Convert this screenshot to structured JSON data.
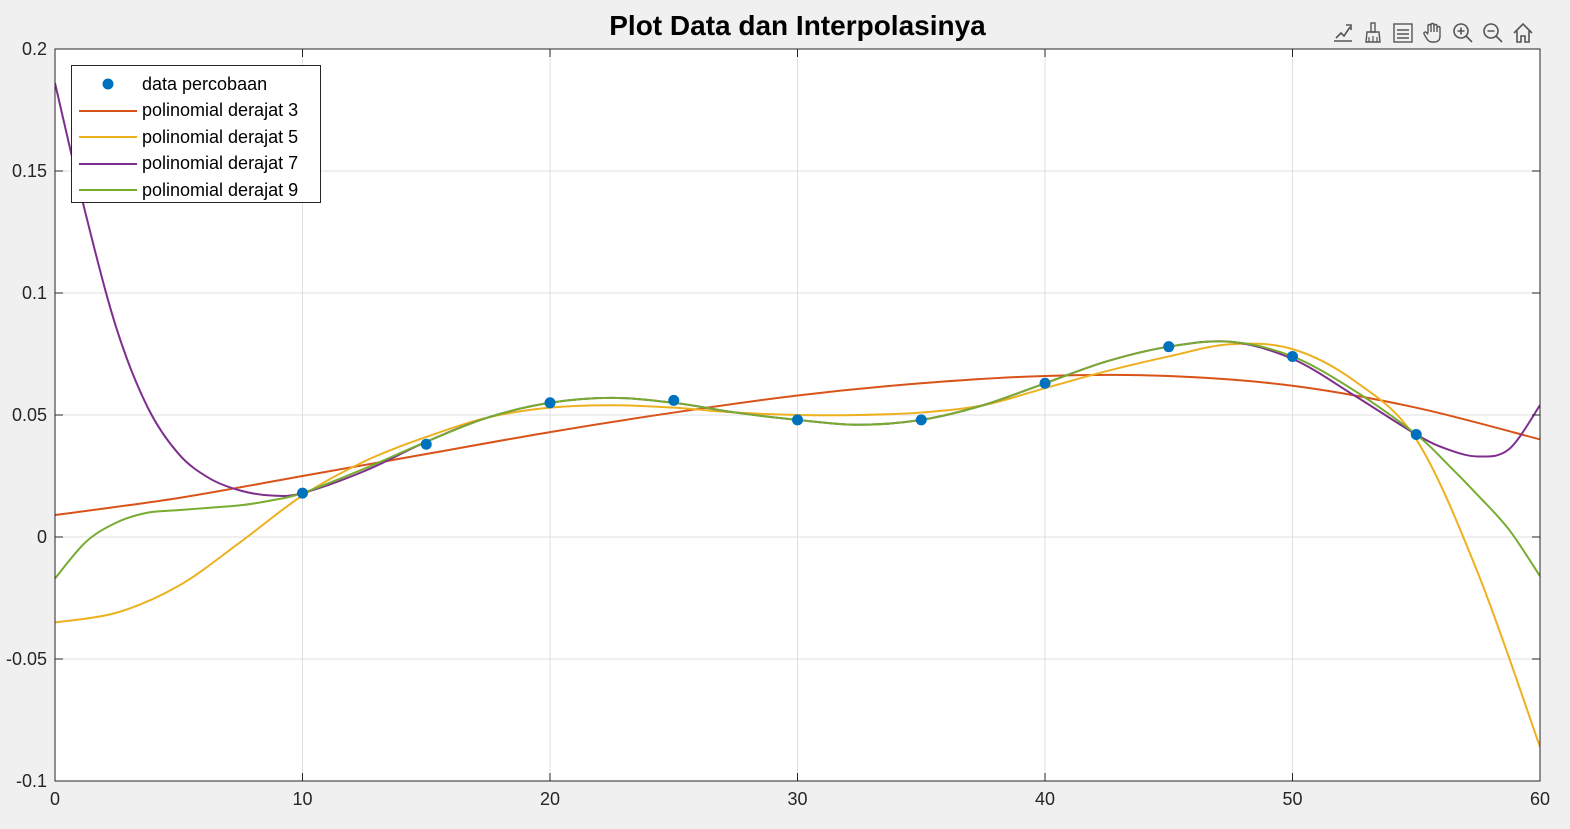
{
  "chart_data": {
    "type": "line",
    "title": "Plot Data dan Interpolasinya",
    "xlabel": "",
    "ylabel": "",
    "xlim": [
      0,
      60
    ],
    "ylim": [
      -0.1,
      0.2
    ],
    "xticks": [
      0,
      10,
      20,
      30,
      40,
      50,
      60
    ],
    "yticks": [
      -0.1,
      -0.05,
      0,
      0.05,
      0.1,
      0.15,
      0.2
    ],
    "xtick_labels": [
      "0",
      "10",
      "20",
      "30",
      "40",
      "50",
      "60"
    ],
    "ytick_labels": [
      "-0.1",
      "-0.05",
      "0",
      "0.05",
      "0.1",
      "0.15",
      "0.2"
    ],
    "grid": true,
    "legend_position": "top-left",
    "data_points": {
      "name": "data percobaan",
      "color": "#0072BD",
      "x": [
        10,
        15,
        20,
        25,
        30,
        35,
        40,
        45,
        50,
        55
      ],
      "y": [
        0.018,
        0.038,
        0.055,
        0.056,
        0.048,
        0.048,
        0.063,
        0.078,
        0.074,
        0.042
      ]
    },
    "series": [
      {
        "name": "polinomial derajat 3",
        "color": "#D95319",
        "x": [
          0,
          5,
          10,
          15,
          20,
          25,
          30,
          35,
          40,
          45,
          50,
          55,
          60
        ],
        "y": [
          0.009,
          0.016,
          0.025,
          0.034,
          0.043,
          0.051,
          0.058,
          0.063,
          0.066,
          0.066,
          0.062,
          0.053,
          0.04
        ]
      },
      {
        "name": "polinomial derajat 5",
        "color": "#EDB120",
        "x": [
          0,
          2.5,
          5,
          7.5,
          10,
          12.5,
          15,
          17.5,
          20,
          22.5,
          25,
          27.5,
          30,
          32.5,
          35,
          37.5,
          40,
          42.5,
          45,
          47.5,
          50,
          52.5,
          55,
          57.5,
          60
        ],
        "y": [
          -0.035,
          -0.031,
          -0.02,
          -0.002,
          0.017,
          0.031,
          0.041,
          0.049,
          0.053,
          0.054,
          0.053,
          0.051,
          0.05,
          0.05,
          0.051,
          0.054,
          0.061,
          0.068,
          0.074,
          0.079,
          0.077,
          0.064,
          0.04,
          -0.015,
          -0.086
        ]
      },
      {
        "name": "polinomial derajat 7",
        "color": "#7E2F8E",
        "x": [
          0,
          1.25,
          2.5,
          3.75,
          5,
          6.25,
          7.5,
          8.75,
          10,
          12.5,
          15,
          17.5,
          20,
          22.5,
          25,
          27.5,
          30,
          32.5,
          35,
          37.5,
          40,
          42.5,
          45,
          47.5,
          50,
          52.5,
          55,
          56.25,
          57.5,
          58.75,
          60
        ],
        "y": [
          0.186,
          0.132,
          0.085,
          0.053,
          0.034,
          0.024,
          0.019,
          0.017,
          0.018,
          0.027,
          0.039,
          0.049,
          0.055,
          0.057,
          0.055,
          0.051,
          0.048,
          0.046,
          0.048,
          0.054,
          0.063,
          0.072,
          0.078,
          0.08,
          0.073,
          0.058,
          0.042,
          0.036,
          0.033,
          0.036,
          0.054
        ]
      },
      {
        "name": "polinomial derajat 9",
        "color": "#77AC30",
        "x": [
          0,
          1.25,
          2.5,
          3.75,
          5,
          6.25,
          7.5,
          8.75,
          10,
          12.5,
          15,
          17.5,
          20,
          22.5,
          25,
          27.5,
          30,
          32.5,
          35,
          37.5,
          40,
          42.5,
          45,
          47.5,
          50,
          52.5,
          55,
          56.25,
          57.5,
          58.75,
          60
        ],
        "y": [
          -0.017,
          -0.002,
          0.006,
          0.01,
          0.011,
          0.012,
          0.013,
          0.015,
          0.018,
          0.028,
          0.039,
          0.049,
          0.055,
          0.057,
          0.055,
          0.051,
          0.048,
          0.046,
          0.048,
          0.054,
          0.063,
          0.072,
          0.078,
          0.08,
          0.074,
          0.06,
          0.042,
          0.03,
          0.017,
          0.003,
          -0.016
        ]
      }
    ]
  },
  "toolbar": {
    "icons": [
      "data-tips-icon",
      "brush-icon",
      "legend-toggle-icon",
      "pan-hand-icon",
      "zoom-in-icon",
      "zoom-out-icon",
      "home-icon"
    ]
  }
}
